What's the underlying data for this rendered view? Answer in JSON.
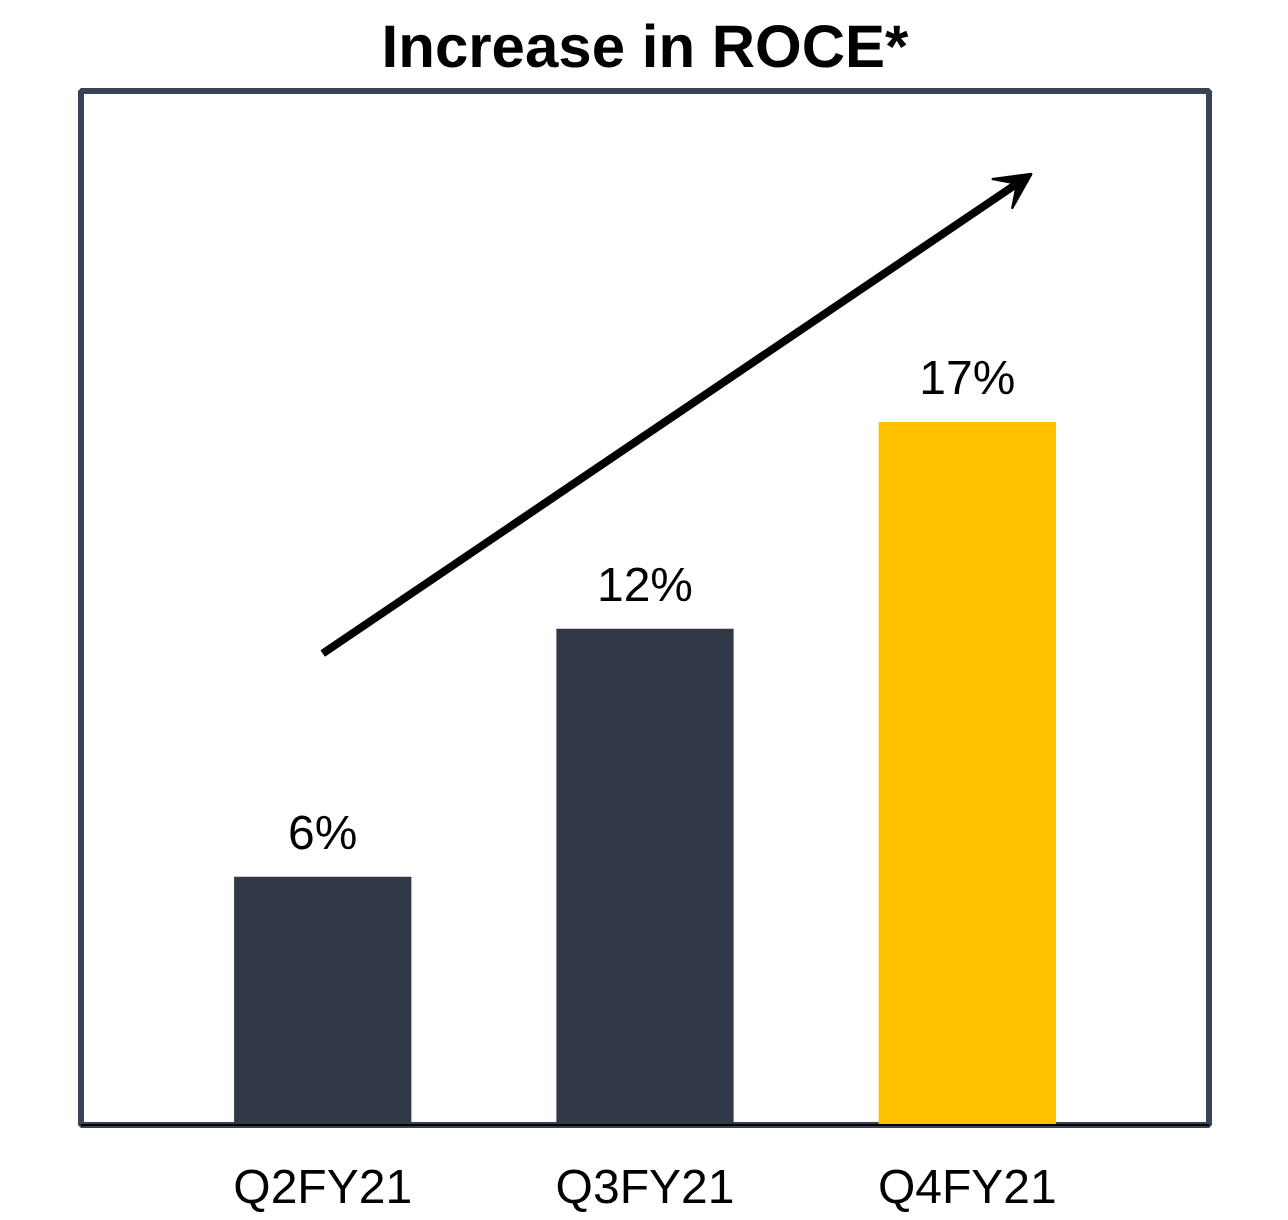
{
  "chart_data": {
    "type": "bar",
    "title": "Increase in ROCE*",
    "categories": [
      "Q2FY21",
      "Q3FY21",
      "Q4FY21"
    ],
    "values": [
      6,
      12,
      17
    ],
    "colors": [
      "#333849",
      "#333849",
      "#ffc000"
    ],
    "value_labels": [
      "6%",
      "12%",
      "17%"
    ],
    "ylim": [
      0,
      25
    ],
    "tick_labels": "x",
    "grid": false
  }
}
